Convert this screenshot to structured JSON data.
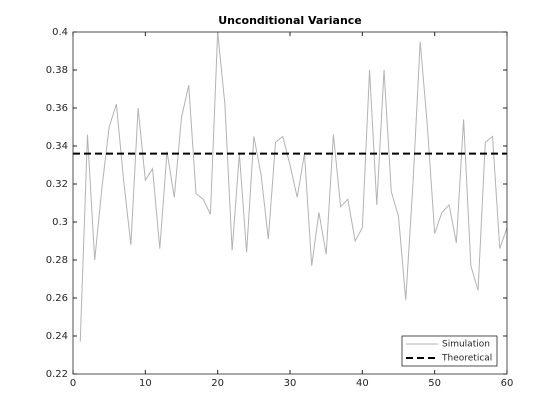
{
  "chart_data": {
    "type": "line",
    "title": "Unconditional Variance",
    "xlim": [
      0,
      60
    ],
    "xticks": [
      0,
      10,
      20,
      30,
      40,
      50,
      60
    ],
    "ylim": [
      0.22,
      0.4
    ],
    "yticks": [
      0.22,
      0.24,
      0.26,
      0.28,
      0.3,
      0.32,
      0.34,
      0.36,
      0.38,
      0.4
    ],
    "legend": "lower right",
    "series": [
      {
        "name": "Simulation",
        "color": "#b3b3b3",
        "dash": "solid",
        "x": [
          1,
          2,
          3,
          4,
          5,
          6,
          7,
          8,
          9,
          10,
          11,
          12,
          13,
          14,
          15,
          16,
          17,
          18,
          19,
          20,
          21,
          22,
          23,
          24,
          25,
          26,
          27,
          28,
          29,
          30,
          31,
          32,
          33,
          34,
          35,
          36,
          37,
          38,
          39,
          40,
          41,
          42,
          43,
          44,
          45,
          46,
          47,
          48,
          49,
          50,
          51,
          52,
          53,
          54,
          55,
          56,
          57,
          58,
          59,
          60
        ],
        "values": [
          0.237,
          0.346,
          0.28,
          0.318,
          0.35,
          0.362,
          0.322,
          0.288,
          0.36,
          0.322,
          0.328,
          0.286,
          0.337,
          0.313,
          0.355,
          0.372,
          0.315,
          0.312,
          0.304,
          0.4,
          0.362,
          0.285,
          0.336,
          0.284,
          0.345,
          0.325,
          0.291,
          0.342,
          0.345,
          0.33,
          0.313,
          0.336,
          0.277,
          0.305,
          0.283,
          0.346,
          0.308,
          0.312,
          0.29,
          0.297,
          0.38,
          0.309,
          0.38,
          0.316,
          0.303,
          0.259,
          0.32,
          0.395,
          0.35,
          0.294,
          0.305,
          0.309,
          0.289,
          0.354,
          0.277,
          0.264,
          0.342,
          0.345,
          0.286,
          0.297
        ]
      },
      {
        "name": "Theoretical",
        "color": "#000000",
        "dash": "dashed",
        "x": [
          0,
          60
        ],
        "values": [
          0.336,
          0.336
        ]
      }
    ]
  }
}
